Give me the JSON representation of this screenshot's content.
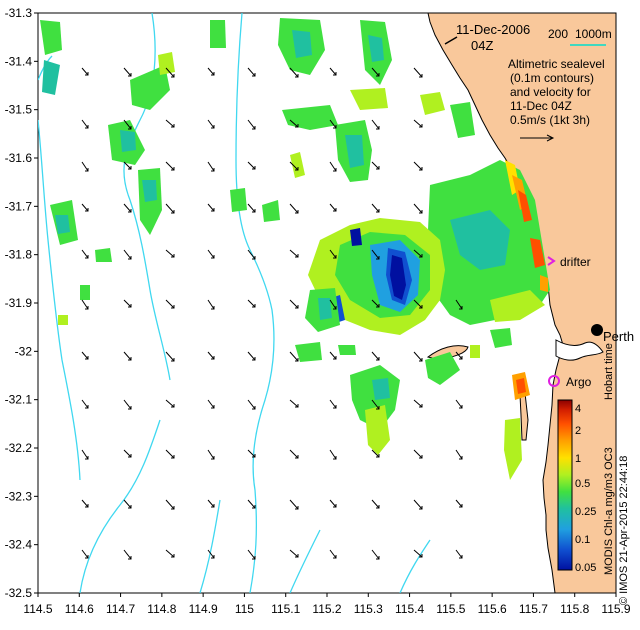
{
  "map": {
    "lon_ticks": [
      "114.5",
      "114.6",
      "114.7",
      "114.8",
      "114.9",
      "115",
      "115.1",
      "115.2",
      "115.3",
      "115.4",
      "115.5",
      "115.6",
      "115.7",
      "115.8",
      "115.9"
    ],
    "lat_ticks": [
      "-31.3",
      "-31.4",
      "-31.5",
      "-31.6",
      "-31.7",
      "-31.8",
      "-31.9",
      "-32",
      "-32.1",
      "-32.2",
      "-32.3",
      "-32.4",
      "-32.5"
    ],
    "lon_range": [
      114.5,
      115.9
    ],
    "lat_range": [
      -32.5,
      -31.3
    ],
    "colors": {
      "land": "#f9c89b",
      "contour": "#40d8f0",
      "scale_bar": "#40d8c0",
      "argo": "#e020e0",
      "drifter": "#e020e0"
    }
  },
  "header": {
    "date": "11-Dec-2006",
    "time": "04Z",
    "scale_left": "200",
    "scale_right": "1000m"
  },
  "legend": {
    "line1": "Altimetric sealevel",
    "line2": "(0.1m contours)",
    "line3": "and velocity for",
    "line4": "11-Dec 04Z",
    "line5": "0.5m/s (1kt 3h)"
  },
  "labels": {
    "drifter": "drifter",
    "perth": "Perth",
    "argo": "Argo",
    "hobart": "Hobart time",
    "product": "MODIS Chl-a mg/m3 OC3",
    "credit": "© IMOS 21-Apr-2015 22:44:18"
  },
  "colorbar": {
    "ticks": [
      "4",
      "2",
      "1",
      "0.5",
      "0.25",
      "0.1",
      "0.05"
    ],
    "stops": [
      "#8b0000",
      "#d42000",
      "#ff5000",
      "#ffa000",
      "#ffe000",
      "#b0f020",
      "#40e040",
      "#20c0a0",
      "#20a0e0",
      "#1050d0",
      "#0010a0"
    ]
  }
}
